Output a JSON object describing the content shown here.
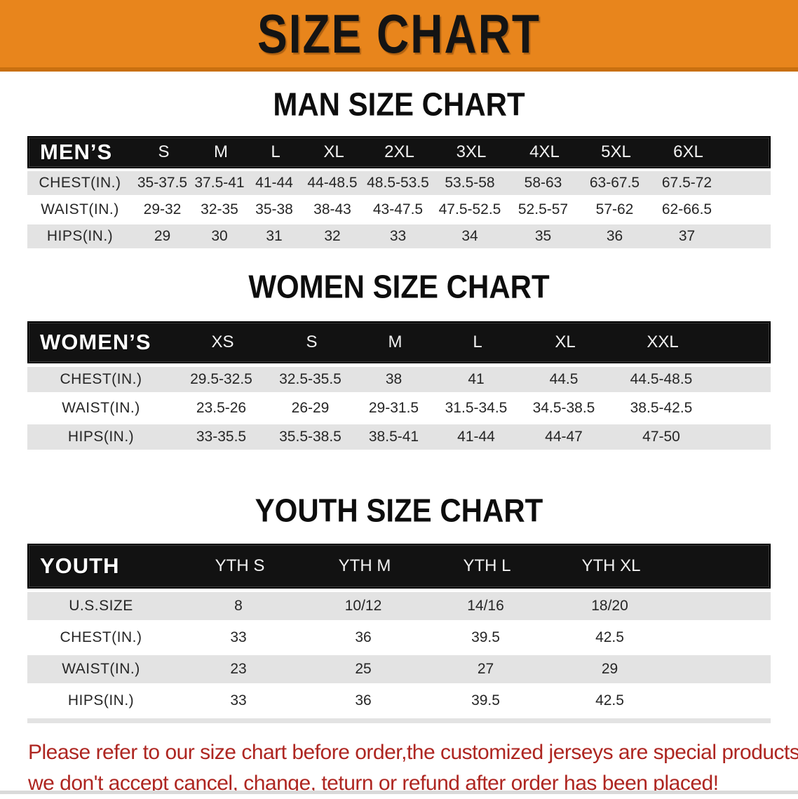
{
  "banner": {
    "title": "SIZE CHART",
    "bg_color": "#E8851C",
    "border_color": "#C9700F"
  },
  "men": {
    "section_title": "MAN SIZE CHART",
    "corner_label": "MEN’S",
    "columns": [
      "S",
      "M",
      "L",
      "XL",
      "2XL",
      "3XL",
      "4XL",
      "5XL",
      "6XL"
    ],
    "rows": [
      {
        "label": "CHEST(IN.)",
        "values": [
          "35-37.5",
          "37.5-41",
          "41-44",
          "44-48.5",
          "48.5-53.5",
          "53.5-58",
          "58-63",
          "63-67.5",
          "67.5-72"
        ]
      },
      {
        "label": "WAIST(IN.)",
        "values": [
          "29-32",
          "32-35",
          "35-38",
          "38-43",
          "43-47.5",
          "47.5-52.5",
          "52.5-57",
          "57-62",
          "62-66.5"
        ]
      },
      {
        "label": "HIPS(IN.)",
        "values": [
          "29",
          "30",
          "31",
          "32",
          "33",
          "34",
          "35",
          "36",
          "37"
        ]
      }
    ]
  },
  "women": {
    "section_title": "WOMEN SIZE CHART",
    "corner_label": "WOMEN’S",
    "columns": [
      "XS",
      "S",
      "M",
      "L",
      "XL",
      "XXL"
    ],
    "rows": [
      {
        "label": "CHEST(IN.)",
        "values": [
          "29.5-32.5",
          "32.5-35.5",
          "38",
          "41",
          "44.5",
          "44.5-48.5"
        ]
      },
      {
        "label": "WAIST(IN.)",
        "values": [
          "23.5-26",
          "26-29",
          "29-31.5",
          "31.5-34.5",
          "34.5-38.5",
          "38.5-42.5"
        ]
      },
      {
        "label": "HIPS(IN.)",
        "values": [
          "33-35.5",
          "35.5-38.5",
          "38.5-41",
          "41-44",
          "44-47",
          "47-50"
        ]
      }
    ]
  },
  "youth": {
    "section_title": "YOUTH SIZE CHART",
    "corner_label": "YOUTH",
    "columns": [
      "YTH S",
      "YTH M",
      "YTH L",
      "YTH XL"
    ],
    "rows": [
      {
        "label": "U.S.SIZE",
        "values": [
          "8",
          "10/12",
          "14/16",
          "18/20"
        ]
      },
      {
        "label": "CHEST(IN.)",
        "values": [
          "33",
          "36",
          "39.5",
          "42.5"
        ]
      },
      {
        "label": "WAIST(IN.)",
        "values": [
          "23",
          "25",
          "27",
          "29"
        ]
      },
      {
        "label": "HIPS(IN.)",
        "values": [
          "33",
          "36",
          "39.5",
          "42.5"
        ]
      }
    ]
  },
  "note": {
    "line1": "Please refer to our size chart before order,the customized jerseys are special products,",
    "line2": "we don't accept cancel, change, teturn or refund after order has been placed!",
    "color": "#AE2621"
  }
}
